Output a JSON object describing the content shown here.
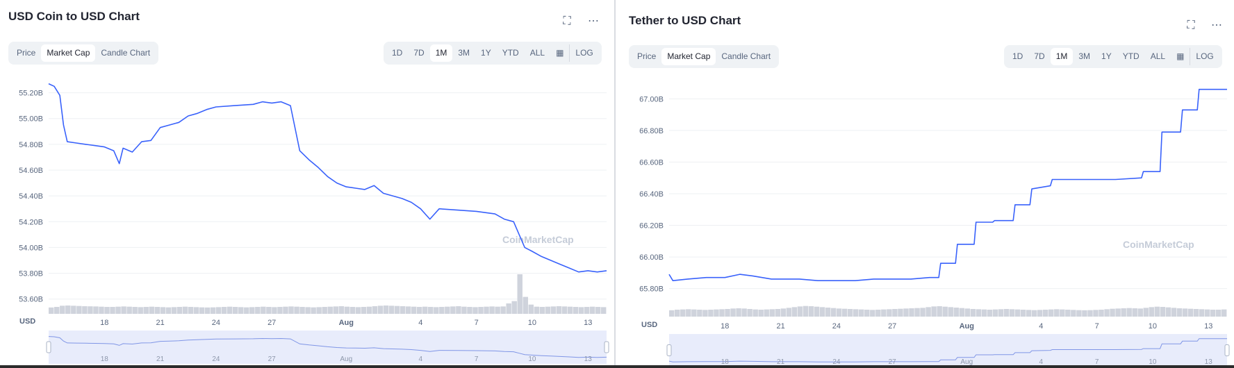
{
  "colors": {
    "line": "#3861fb",
    "volume": "#cfd3dc",
    "grid": "#eef0f3",
    "navigator_bg": "#e8ecfb",
    "text": "#58667e",
    "title": "#222531"
  },
  "icons": {
    "fullscreen": "fullscreen-icon",
    "more": "more-icon",
    "calendar": "calendar-icon"
  },
  "watermark": "CoinMarketCap",
  "charts": [
    {
      "title": "USD Coin to USD Chart",
      "tabs": [
        "Price",
        "Market Cap",
        "Candle Chart"
      ],
      "active_tab": "Market Cap",
      "ranges": [
        "1D",
        "7D",
        "1M",
        "3M",
        "1Y",
        "YTD",
        "ALL"
      ],
      "active_range": "1M",
      "log_label": "LOG",
      "currency_label": "USD"
    },
    {
      "title": "Tether to USD Chart",
      "tabs": [
        "Price",
        "Market Cap",
        "Candle Chart"
      ],
      "active_tab": "Market Cap",
      "ranges": [
        "1D",
        "7D",
        "1M",
        "3M",
        "1Y",
        "YTD",
        "ALL"
      ],
      "active_range": "1M",
      "log_label": "LOG",
      "currency_label": "USD"
    }
  ],
  "chart_data": [
    {
      "type": "line",
      "title": "USD Coin to USD Chart",
      "ylabel": "USD",
      "ylim": [
        53.55,
        55.3
      ],
      "yticks": [
        "53.60B",
        "53.80B",
        "54.00B",
        "54.20B",
        "54.40B",
        "54.60B",
        "54.80B",
        "55.00B",
        "55.20B"
      ],
      "ytick_values": [
        53.6,
        53.8,
        54.0,
        54.2,
        54.4,
        54.6,
        54.8,
        55.0,
        55.2
      ],
      "xlim": [
        15,
        45.0
      ],
      "xticks": [
        "18",
        "21",
        "24",
        "27",
        "Aug",
        "4",
        "7",
        "10",
        "13"
      ],
      "xtick_values": [
        18,
        21,
        24,
        27,
        31,
        35,
        38,
        41,
        44
      ],
      "series": [
        {
          "x": [
            15,
            15.3,
            15.6,
            15.8,
            16,
            16.5,
            17,
            17.5,
            18,
            18.5,
            18.8,
            19,
            19.5,
            20,
            20.5,
            21,
            21.5,
            22,
            22.5,
            23,
            23.5,
            24,
            25,
            26,
            26.5,
            27,
            27.5,
            28,
            28.5,
            29,
            29.5,
            30,
            30.5,
            31,
            31.5,
            32,
            32.5,
            33,
            33.5,
            34,
            34.5,
            35,
            35.5,
            36,
            37,
            38,
            39,
            39.5,
            40,
            40.3,
            40.6,
            41,
            41.5,
            42,
            42.5,
            43,
            43.5,
            44,
            44.5,
            45
          ],
          "y": [
            55.27,
            55.25,
            55.18,
            54.95,
            54.82,
            54.81,
            54.8,
            54.79,
            54.78,
            54.75,
            54.65,
            54.77,
            54.74,
            54.82,
            54.83,
            54.93,
            54.95,
            54.97,
            55.02,
            55.04,
            55.07,
            55.09,
            55.1,
            55.11,
            55.13,
            55.12,
            55.13,
            55.1,
            54.75,
            54.68,
            54.62,
            54.55,
            54.5,
            54.47,
            54.46,
            54.45,
            54.48,
            54.42,
            54.4,
            54.38,
            54.35,
            54.3,
            54.22,
            54.3,
            54.29,
            54.28,
            54.26,
            54.22,
            54.2,
            54.1,
            54.0,
            53.97,
            53.93,
            53.9,
            53.87,
            53.84,
            53.81,
            53.82,
            53.81,
            53.82
          ]
        }
      ],
      "volume": [
        0.55,
        0.6,
        0.7,
        0.72,
        0.7,
        0.68,
        0.66,
        0.65,
        0.64,
        0.62,
        0.6,
        0.6,
        0.62,
        0.64,
        0.62,
        0.6,
        0.58,
        0.6,
        0.62,
        0.6,
        0.58,
        0.56,
        0.58,
        0.6,
        0.62,
        0.6,
        0.58,
        0.56,
        0.55,
        0.56,
        0.58,
        0.6,
        0.62,
        0.6,
        0.58,
        0.56,
        0.58,
        0.6,
        0.62,
        0.6,
        0.58,
        0.6,
        0.62,
        0.64,
        0.62,
        0.6,
        0.58,
        0.56,
        0.58,
        0.6,
        0.62,
        0.64,
        0.66,
        0.62,
        0.6,
        0.58,
        0.6,
        0.62,
        0.66,
        0.7,
        0.72,
        0.7,
        0.68,
        0.66,
        0.64,
        0.62,
        0.6,
        0.62,
        0.6,
        0.58,
        0.6,
        0.62,
        0.64,
        0.66,
        0.62,
        0.6,
        0.58,
        0.6,
        0.62,
        0.64,
        0.62,
        0.64,
        0.9,
        1.8,
        5.6,
        2.4,
        0.8,
        0.62,
        0.6,
        0.62,
        0.64,
        0.66,
        0.64,
        0.62,
        0.6,
        0.58,
        0.6,
        0.62,
        0.6,
        0.58
      ]
    },
    {
      "type": "line",
      "title": "Tether to USD Chart",
      "ylabel": "USD",
      "ylim": [
        65.75,
        67.12
      ],
      "yticks": [
        "65.80B",
        "66.00B",
        "66.20B",
        "66.40B",
        "66.60B",
        "66.80B",
        "67.00B"
      ],
      "ytick_values": [
        65.8,
        66.0,
        66.2,
        66.4,
        66.6,
        66.8,
        67.0
      ],
      "xlim": [
        15,
        45.0
      ],
      "xticks": [
        "18",
        "21",
        "24",
        "27",
        "Aug",
        "4",
        "7",
        "10",
        "13"
      ],
      "xtick_values": [
        18,
        21,
        24,
        27,
        31,
        35,
        38,
        41,
        44
      ],
      "series": [
        {
          "x": [
            15,
            15.2,
            16,
            17,
            18,
            18.8,
            19.5,
            20.5,
            21,
            22,
            23,
            24,
            25,
            26,
            27,
            28,
            29,
            29.5,
            29.6,
            30.4,
            30.5,
            31.4,
            31.5,
            32.4,
            32.5,
            33.5,
            33.6,
            34.4,
            34.5,
            35.5,
            35.6,
            37,
            38,
            39,
            40.4,
            40.5,
            41.4,
            41.5,
            42.5,
            42.6,
            43.4,
            43.5,
            44.4,
            44.5,
            45
          ],
          "y": [
            65.89,
            65.85,
            65.86,
            65.87,
            65.87,
            65.89,
            65.88,
            65.86,
            65.86,
            65.86,
            65.85,
            65.85,
            65.85,
            65.86,
            65.86,
            65.86,
            65.87,
            65.87,
            65.96,
            65.96,
            66.08,
            66.08,
            66.22,
            66.22,
            66.23,
            66.23,
            66.33,
            66.33,
            66.43,
            66.45,
            66.49,
            66.49,
            66.49,
            66.49,
            66.5,
            66.54,
            66.54,
            66.79,
            66.79,
            66.93,
            66.93,
            67.06,
            67.06,
            67.06,
            67.06
          ]
        }
      ],
      "volume": [
        0.55,
        0.6,
        0.62,
        0.64,
        0.62,
        0.6,
        0.58,
        0.6,
        0.62,
        0.64,
        0.66,
        0.7,
        0.72,
        0.7,
        0.66,
        0.62,
        0.6,
        0.62,
        0.64,
        0.66,
        0.7,
        0.76,
        0.82,
        0.88,
        0.92,
        0.9,
        0.86,
        0.82,
        0.78,
        0.74,
        0.7,
        0.68,
        0.66,
        0.64,
        0.62,
        0.6,
        0.58,
        0.6,
        0.62,
        0.64,
        0.66,
        0.68,
        0.7,
        0.72,
        0.74,
        0.76,
        0.82,
        0.88,
        0.9,
        0.86,
        0.82,
        0.78,
        0.74,
        0.7,
        0.66,
        0.64,
        0.62,
        0.6,
        0.62,
        0.64,
        0.66,
        0.64,
        0.62,
        0.6,
        0.58,
        0.56,
        0.58,
        0.6,
        0.62,
        0.64,
        0.62,
        0.6,
        0.58,
        0.56,
        0.55,
        0.56,
        0.58,
        0.6,
        0.64,
        0.68,
        0.7,
        0.72,
        0.74,
        0.72,
        0.7,
        0.76,
        0.82,
        0.86,
        0.84,
        0.8,
        0.76,
        0.72,
        0.7,
        0.68,
        0.66,
        0.64,
        0.62,
        0.6,
        0.6,
        0.62
      ]
    }
  ]
}
